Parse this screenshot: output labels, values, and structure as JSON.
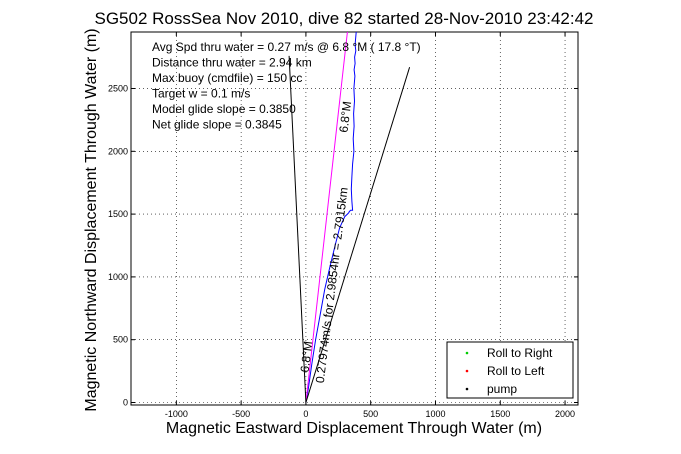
{
  "chart_data": {
    "type": "line",
    "title": "SG502 RossSea Nov 2010, dive 82 started 28-Nov-2010 23:42:42",
    "xlabel": "Magnetic Eastward Displacement Through Water (m)",
    "ylabel": "Magnetic Northward Displacement Through Water (m)",
    "xlim": [
      -1350,
      2100
    ],
    "ylim": [
      -20,
      2950
    ],
    "x_ticks": [
      -1000,
      -500,
      0,
      500,
      1000,
      1500,
      2000
    ],
    "y_ticks": [
      0,
      500,
      1000,
      1500,
      2000,
      2500
    ],
    "grid": true,
    "legend_position": "bottom-right",
    "legend": [
      {
        "label": "Roll to Right",
        "color": "#00cc00"
      },
      {
        "label": "Roll to Left",
        "color": "#ff0000"
      },
      {
        "label": "pump",
        "color": "#000000"
      }
    ],
    "annotations": [
      "Avg Spd thru water =  0.27 m/s @   6.8   °M ( 17.8 °T)",
      "Distance thru water =  2.94 km",
      "Max buoy (cmdfile) = 150 cc",
      "Target w = 0.1 m/s",
      "Model glide slope = 0.3850",
      "Net glide slope = 0.3845"
    ],
    "rotated_labels": [
      {
        "text": "0.27974m/s for 2.9854hr = 2.7915km",
        "x": 230,
        "y": 930
      },
      {
        "text": "6.8°M",
        "x": 335,
        "y": 2270
      },
      {
        "text": "6.8°M",
        "x": 35,
        "y": 360
      }
    ],
    "series": [
      {
        "name": "",
        "color": "#0000ff",
        "x": [
          0,
          20,
          45,
          75,
          110,
          145,
          185,
          225,
          260,
          300,
          320,
          330,
          335,
          345,
          360,
          355,
          350,
          355,
          360,
          370,
          365,
          372,
          368,
          375,
          370,
          378,
          372,
          380,
          376,
          385,
          380,
          388
        ],
        "y": [
          0,
          120,
          300,
          500,
          700,
          900,
          1080,
          1250,
          1390,
          1480,
          1500,
          1510,
          1520,
          1530,
          1530,
          1600,
          1700,
          1800,
          1900,
          2000,
          2100,
          2200,
          2300,
          2400,
          2500,
          2600,
          2650,
          2700,
          2750,
          2800,
          2850,
          2950
        ]
      },
      {
        "name": "",
        "color": "#ff00ff",
        "x": [
          0,
          320
        ],
        "y": [
          0,
          2950
        ]
      },
      {
        "name": "",
        "color": "#000000",
        "x": [
          0,
          -130
        ],
        "y": [
          0,
          2760
        ]
      },
      {
        "name": "",
        "color": "#000000",
        "x": [
          0,
          800
        ],
        "y": [
          0,
          2670
        ]
      }
    ]
  }
}
